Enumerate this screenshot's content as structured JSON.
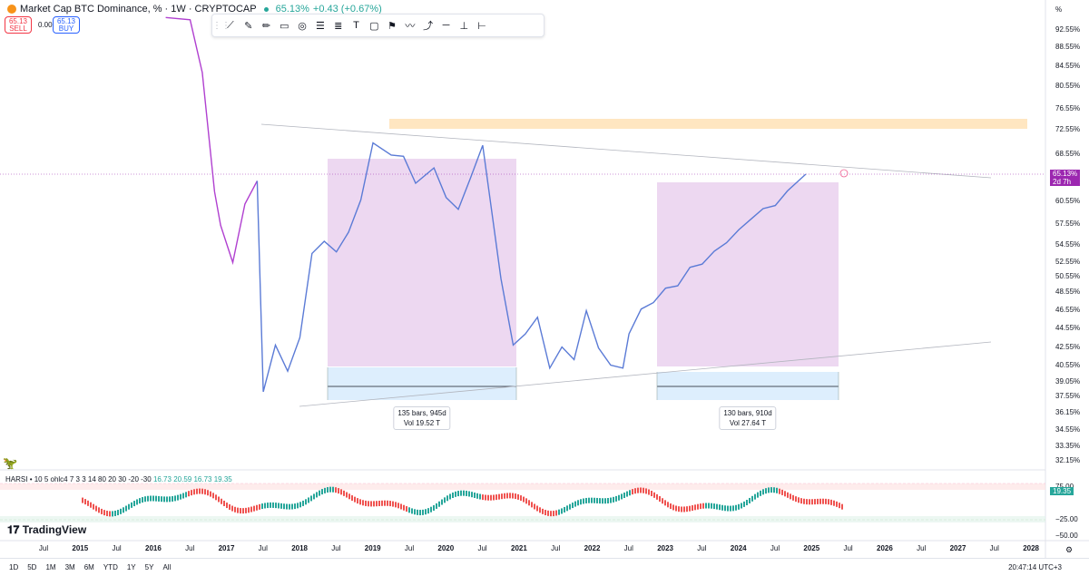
{
  "header": {
    "title": "Market Cap BTC Dominance, % · 1W · CRYPTOCAP",
    "price": "65.13%",
    "change": "+0.43 (+0.67%)"
  },
  "order": {
    "sell_price": "65.13",
    "sell_label": "SELL",
    "spread": "0.00",
    "buy_price": "65.13",
    "buy_label": "BUY"
  },
  "toolbar": {
    "icons": [
      "trendline-icon",
      "brush-icon",
      "pencil-icon",
      "rectangle-icon",
      "circle-icon",
      "fib-icon",
      "pattern-icon",
      "text-icon",
      "callout-icon",
      "signpost-icon",
      "path-icon",
      "curve-icon",
      "horizontal-line-icon",
      "vertical-line-icon",
      "date-range-icon"
    ]
  },
  "price_axis": {
    "unit": "%",
    "labels": [
      "92.55%",
      "88.55%",
      "84.55%",
      "80.55%",
      "76.55%",
      "72.55%",
      "68.55%",
      "60.55%",
      "57.55%",
      "54.55%",
      "52.55%",
      "50.55%",
      "48.55%",
      "46.55%",
      "44.55%",
      "42.55%",
      "40.55%",
      "39.05%",
      "37.55%",
      "36.15%",
      "34.55%",
      "33.35%",
      "32.15%"
    ],
    "current": "65.13%",
    "countdown": "2d 7h"
  },
  "time_axis": [
    {
      "t": "Jul",
      "b": false
    },
    {
      "t": "2015",
      "b": true
    },
    {
      "t": "Jul",
      "b": false
    },
    {
      "t": "2016",
      "b": true
    },
    {
      "t": "Jul",
      "b": false
    },
    {
      "t": "2017",
      "b": true
    },
    {
      "t": "Jul",
      "b": false
    },
    {
      "t": "2018",
      "b": true
    },
    {
      "t": "Jul",
      "b": false
    },
    {
      "t": "2019",
      "b": true
    },
    {
      "t": "Jul",
      "b": false
    },
    {
      "t": "2020",
      "b": true
    },
    {
      "t": "Jul",
      "b": false
    },
    {
      "t": "2021",
      "b": true
    },
    {
      "t": "Jul",
      "b": false
    },
    {
      "t": "2022",
      "b": true
    },
    {
      "t": "Jul",
      "b": false
    },
    {
      "t": "2023",
      "b": true
    },
    {
      "t": "Jul",
      "b": false
    },
    {
      "t": "2024",
      "b": true
    },
    {
      "t": "Jul",
      "b": false
    },
    {
      "t": "2025",
      "b": true
    },
    {
      "t": "Jul",
      "b": false
    },
    {
      "t": "2026",
      "b": true
    },
    {
      "t": "Jul",
      "b": false
    },
    {
      "t": "2027",
      "b": true
    },
    {
      "t": "Jul",
      "b": false
    },
    {
      "t": "2028",
      "b": true
    }
  ],
  "measurements": [
    {
      "bars": "135 bars, 945d",
      "vol": "Vol 19.52 T"
    },
    {
      "bars": "130 bars, 910d",
      "vol": "Vol 27.64 T"
    }
  ],
  "indicator": {
    "name": "HARSI",
    "params": "• 10 5 ohlc4 7 3 3 14 80 20 30 -20 -30",
    "values": [
      "16.73",
      "20.59",
      "16.73",
      "19.35"
    ],
    "axis": [
      "75.00",
      "−25.00",
      "−50.00"
    ],
    "current": "19.35"
  },
  "branding": "TradingView",
  "bottombar": {
    "ranges": [
      "1D",
      "5D",
      "1M",
      "3M",
      "6M",
      "YTD",
      "1Y",
      "5Y",
      "All"
    ],
    "clock": "20:47:14 UTC+3"
  },
  "colors": {
    "line_early": "#9c27b0",
    "line_late": "#5b7bd6",
    "zone": "#e1bee7",
    "resistance": "#ffe0b2",
    "up": "#26a69a",
    "down": "#ef5350"
  },
  "chart_data": {
    "type": "line",
    "series": [
      {
        "values": [
          [
            "2016-09",
            95.3
          ],
          [
            "2017-01",
            94.8
          ],
          [
            "2017-03",
            84.0
          ],
          [
            "2017-05",
            62.2
          ],
          [
            "2017-06",
            57.4
          ],
          [
            "2017-08",
            52.5
          ],
          [
            "2017-10",
            60.2
          ],
          [
            "2017-12",
            64.0
          ],
          [
            "2018-01",
            38.0
          ],
          [
            "2018-03",
            42.8
          ],
          [
            "2018-05",
            40.0
          ],
          [
            "2018-07",
            43.6
          ],
          [
            "2018-09",
            53.7
          ],
          [
            "2018-11",
            55.3
          ],
          [
            "2019-01",
            53.9
          ],
          [
            "2019-03",
            56.5
          ],
          [
            "2019-05",
            60.8
          ],
          [
            "2019-07",
            70.4
          ],
          [
            "2019-10",
            68.4
          ],
          [
            "2019-12",
            68.2
          ],
          [
            "2020-02",
            63.6
          ],
          [
            "2020-05",
            66.2
          ],
          [
            "2020-07",
            61.2
          ],
          [
            "2020-09",
            59.5
          ],
          [
            "2020-11",
            64.5
          ],
          [
            "2021-01",
            70.0
          ],
          [
            "2021-02",
            62.5
          ],
          [
            "2021-04",
            50.5
          ],
          [
            "2021-06",
            42.8
          ],
          [
            "2021-08",
            44.0
          ],
          [
            "2021-10",
            45.8
          ],
          [
            "2021-12",
            40.3
          ],
          [
            "2022-02",
            42.6
          ],
          [
            "2022-04",
            41.2
          ],
          [
            "2022-06",
            46.5
          ],
          [
            "2022-08",
            42.5
          ],
          [
            "2022-10",
            40.6
          ],
          [
            "2022-12",
            40.3
          ],
          [
            "2023-01",
            44.0
          ],
          [
            "2023-03",
            46.7
          ],
          [
            "2023-05",
            47.5
          ],
          [
            "2023-07",
            49.3
          ],
          [
            "2023-09",
            49.6
          ],
          [
            "2023-11",
            51.9
          ],
          [
            "2024-01",
            52.3
          ],
          [
            "2024-03",
            54.0
          ],
          [
            "2024-05",
            55.1
          ],
          [
            "2024-07",
            56.8
          ],
          [
            "2024-09",
            58.2
          ],
          [
            "2024-11",
            59.6
          ],
          [
            "2025-01",
            60.0
          ],
          [
            "2025-03",
            62.3
          ],
          [
            "2025-05",
            64.2
          ],
          [
            "2025-06",
            65.13
          ]
        ]
      }
    ],
    "yunit": "%",
    "ylim": [
      32.0,
      95.0
    ]
  }
}
